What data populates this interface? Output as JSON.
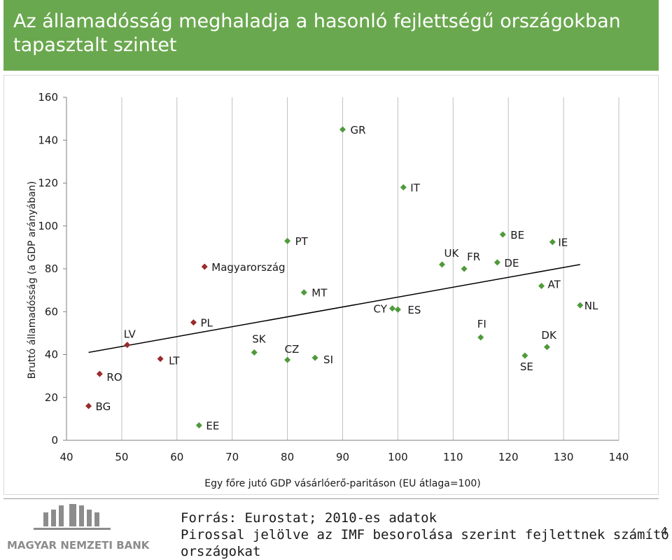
{
  "slide": {
    "title_line1": "Az államadósság meghaladja a hasonló fejlettségű országokban",
    "title_line2": "tapasztalt szintet",
    "source_line1": "Forrás: Eurostat; 2010-es adatok",
    "source_line2": "Pirossal jelölve az IMF besorolása szerint fejlettnek számító országokat",
    "page_number": "4",
    "logo_text": "MAGYAR NEMZETI BANK"
  },
  "colors": {
    "title_bg": "#6aa84f",
    "green_marker": "#4f9a3b",
    "red_marker": "#9b2b2b",
    "trend_line": "#000000",
    "logo_gray": "#8c8c8c"
  },
  "chart_data": {
    "type": "scatter",
    "xlabel": "Egy főre jutó GDP vásárlóerő-paritáson (EU átlaga=100)",
    "ylabel": "Bruttó államadósság (a GDP arányában)",
    "xlim": [
      40,
      140
    ],
    "ylim": [
      0,
      160
    ],
    "x_ticks": [
      "40",
      "50",
      "60",
      "70",
      "80",
      "90",
      "100",
      "110",
      "120",
      "130",
      "140"
    ],
    "y_ticks": [
      "0",
      "20",
      "40",
      "60",
      "80",
      "100",
      "120",
      "140",
      "160"
    ],
    "grid": "vertical lines",
    "points": [
      {
        "label": "BG",
        "x": 44,
        "y": 16,
        "group": "red"
      },
      {
        "label": "RO",
        "x": 46,
        "y": 31,
        "group": "red"
      },
      {
        "label": "LV",
        "x": 51,
        "y": 44.5,
        "group": "red"
      },
      {
        "label": "LT",
        "x": 57,
        "y": 38,
        "group": "red"
      },
      {
        "label": "EE",
        "x": 64,
        "y": 7,
        "group": "green"
      },
      {
        "label": "PL",
        "x": 63,
        "y": 55,
        "group": "red"
      },
      {
        "label": "Magyarország",
        "x": 65,
        "y": 81,
        "group": "red"
      },
      {
        "label": "SK",
        "x": 74,
        "y": 41,
        "group": "green"
      },
      {
        "label": "CZ",
        "x": 80,
        "y": 37.5,
        "group": "green"
      },
      {
        "label": "PT",
        "x": 80,
        "y": 93,
        "group": "green"
      },
      {
        "label": "MT",
        "x": 83,
        "y": 69,
        "group": "green"
      },
      {
        "label": "SI",
        "x": 85,
        "y": 38.5,
        "group": "green"
      },
      {
        "label": "GR",
        "x": 90,
        "y": 145,
        "group": "green"
      },
      {
        "label": "CY",
        "x": 99,
        "y": 61.5,
        "group": "green"
      },
      {
        "label": "ES",
        "x": 100,
        "y": 61,
        "group": "green"
      },
      {
        "label": "IT",
        "x": 101,
        "y": 118,
        "group": "green"
      },
      {
        "label": "UK",
        "x": 108,
        "y": 82,
        "group": "green"
      },
      {
        "label": "FR",
        "x": 112,
        "y": 80,
        "group": "green"
      },
      {
        "label": "FI",
        "x": 115,
        "y": 48,
        "group": "green"
      },
      {
        "label": "DE",
        "x": 118,
        "y": 83,
        "group": "green"
      },
      {
        "label": "BE",
        "x": 119,
        "y": 96,
        "group": "green"
      },
      {
        "label": "SE",
        "x": 123,
        "y": 39.5,
        "group": "green"
      },
      {
        "label": "AT",
        "x": 126,
        "y": 72,
        "group": "green"
      },
      {
        "label": "DK",
        "x": 127,
        "y": 43.5,
        "group": "green"
      },
      {
        "label": "IE",
        "x": 128,
        "y": 92.5,
        "group": "green"
      },
      {
        "label": "NL",
        "x": 133,
        "y": 63,
        "group": "green"
      }
    ],
    "trend": {
      "x1": 44,
      "y1": 41,
      "x2": 133,
      "y2": 82
    }
  }
}
